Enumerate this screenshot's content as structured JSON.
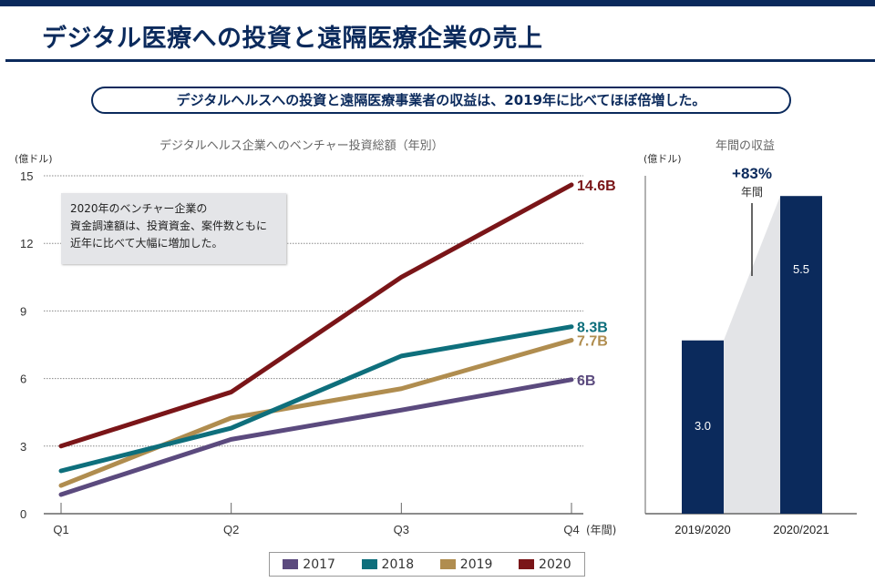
{
  "header": {
    "title": "デジタル医療への投資と遠隔医療企業の売上",
    "summary": "デジタルヘルスへの投資と遠隔医療事業者の収益は、2019年に比べてほぼ倍増した。"
  },
  "colors": {
    "navy": "#0b2a5c",
    "2017": "#5b4a7e",
    "2018": "#0e6f7c",
    "2019": "#b08d4f",
    "2020": "#7a1518"
  },
  "note": {
    "line1": "2020年のベンチャー企業の",
    "line2": "資金調達額は、投資資金、案件数ともに",
    "line3": "近年に比べて大幅に増加した。"
  },
  "chart_data": [
    {
      "type": "line",
      "title": "デジタルヘルス企業へのベンチャー投資総額（年別）",
      "ylabel": "(億ドル)",
      "xlabel": "(年間)",
      "categories": [
        "Q1",
        "Q2",
        "Q3",
        "Q4"
      ],
      "ylim": [
        0,
        15
      ],
      "yticks": [
        0,
        3,
        6,
        9,
        12,
        15
      ],
      "grid": true,
      "legend_position": "bottom",
      "series": [
        {
          "name": "2017",
          "values": [
            0.85,
            3.3,
            4.6,
            5.95
          ],
          "end_label": "6B"
        },
        {
          "name": "2018",
          "values": [
            1.9,
            3.8,
            7.0,
            8.3
          ],
          "end_label": "8.3B"
        },
        {
          "name": "2019",
          "values": [
            1.25,
            4.25,
            5.55,
            7.7
          ],
          "end_label": "7.7B"
        },
        {
          "name": "2020",
          "values": [
            3.0,
            5.4,
            10.5,
            14.6
          ],
          "end_label": "14.6B"
        }
      ]
    },
    {
      "type": "bar",
      "title": "年間の収益",
      "ylabel": "(億ドル)",
      "categories": [
        "2019/2020",
        "2020/2021"
      ],
      "values": [
        3.0,
        5.5
      ],
      "value_labels": [
        "3.0",
        "5.5"
      ],
      "annotation": {
        "value": "+83%",
        "sub": "年間"
      }
    }
  ]
}
